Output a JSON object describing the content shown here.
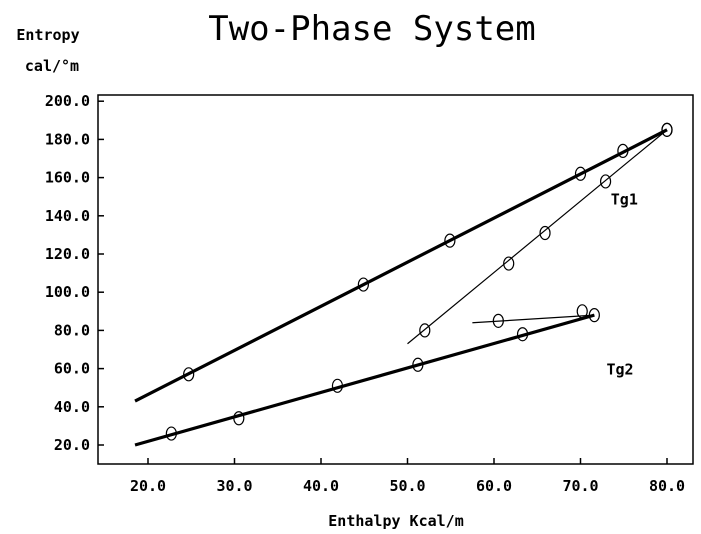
{
  "chart_data": {
    "type": "scatter",
    "title": "Two-Phase System",
    "ylabel_line1": "Entropy",
    "ylabel_line2": "cal/°m",
    "xlabel": "Enthalpy Kcal/m",
    "xlim": [
      15,
      82
    ],
    "ylim": [
      10,
      200
    ],
    "x_ticks": [
      {
        "value": 20,
        "label": "20.0"
      },
      {
        "value": 30,
        "label": "30.0"
      },
      {
        "value": 40,
        "label": "40.0"
      },
      {
        "value": 50,
        "label": "50.0"
      },
      {
        "value": 60,
        "label": "60.0"
      },
      {
        "value": 70,
        "label": "70.0"
      },
      {
        "value": 80,
        "label": "80.0"
      }
    ],
    "y_ticks": [
      {
        "value": 20,
        "label": "20.0"
      },
      {
        "value": 40,
        "label": "40.0"
      },
      {
        "value": 60,
        "label": "60.0"
      },
      {
        "value": 80,
        "label": "80.0"
      },
      {
        "value": 100,
        "label": "100.0"
      },
      {
        "value": 120,
        "label": "120.0"
      },
      {
        "value": 140,
        "label": "140.0"
      },
      {
        "value": 160,
        "label": "160.0"
      },
      {
        "value": 180,
        "label": "180.0"
      },
      {
        "value": 200,
        "label": "200.0"
      }
    ],
    "series": [
      {
        "key": "upper",
        "points": [
          [
            24.7,
            57
          ],
          [
            44.9,
            104
          ],
          [
            54.9,
            127
          ],
          [
            70.0,
            162
          ],
          [
            74.9,
            174
          ],
          [
            80.0,
            185
          ]
        ],
        "line": [
          [
            18.5,
            43
          ],
          [
            80.0,
            185
          ]
        ],
        "line_style": "thick"
      },
      {
        "key": "lower",
        "points": [
          [
            22.7,
            26
          ],
          [
            30.5,
            34
          ],
          [
            41.9,
            51
          ],
          [
            51.2,
            62
          ],
          [
            63.3,
            78
          ],
          [
            71.6,
            88
          ]
        ],
        "line": [
          [
            18.5,
            20
          ],
          [
            71.6,
            88
          ]
        ],
        "line_style": "thick"
      },
      {
        "key": "middle",
        "points": [
          [
            52.0,
            80
          ],
          [
            61.7,
            115
          ],
          [
            65.9,
            131
          ],
          [
            72.9,
            158
          ],
          [
            80.0,
            185
          ]
        ],
        "line": [
          [
            50.0,
            73
          ],
          [
            80.0,
            185
          ]
        ],
        "line_style": "thin"
      },
      {
        "key": "short",
        "points": [
          [
            60.5,
            85
          ],
          [
            70.2,
            90
          ]
        ],
        "line": [
          [
            57.5,
            84
          ],
          [
            71.6,
            88
          ]
        ],
        "line_style": "thin"
      }
    ],
    "annotations": [
      {
        "text": "Tg1",
        "x": 73.5,
        "y": 146
      },
      {
        "text": "Tg2",
        "x": 73.0,
        "y": 57
      }
    ],
    "grid": false
  }
}
